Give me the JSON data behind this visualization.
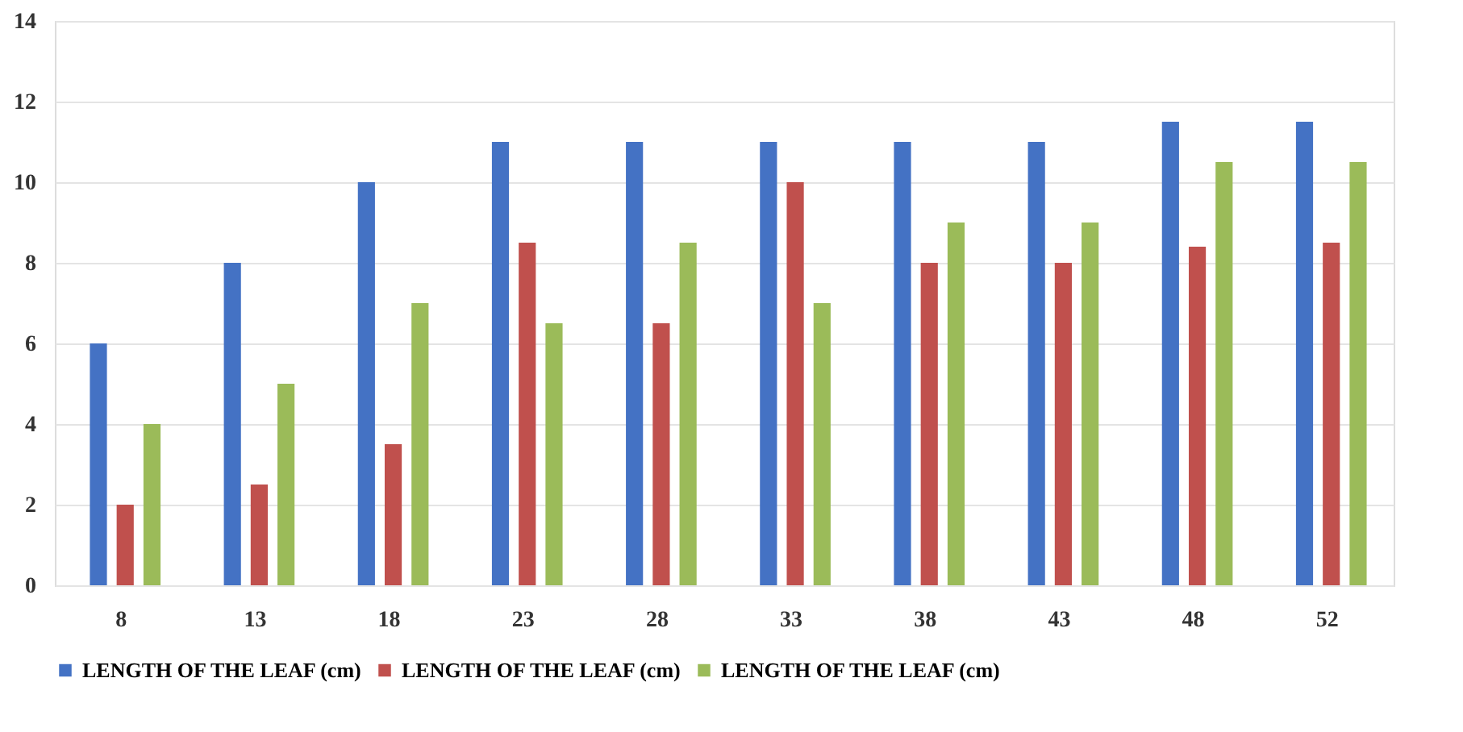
{
  "chart_data": {
    "type": "bar",
    "categories": [
      "8",
      "13",
      "18",
      "23",
      "28",
      "33",
      "38",
      "43",
      "48",
      "52"
    ],
    "series": [
      {
        "name": "LENGTH OF THE LEAF (cm)",
        "color": "#4472c4",
        "values": [
          6,
          8,
          10,
          11,
          11,
          11,
          11,
          11,
          11.5,
          11.5
        ]
      },
      {
        "name": "LENGTH OF THE LEAF (cm)",
        "color": "#c0504d",
        "values": [
          2,
          2.5,
          3.5,
          8.5,
          6.5,
          10,
          8,
          8,
          8.4,
          8.5
        ]
      },
      {
        "name": "LENGTH OF THE LEAF (cm)",
        "color": "#9bbb59",
        "values": [
          4,
          5,
          7,
          6.5,
          8.5,
          7,
          9,
          9,
          10.5,
          10.5
        ]
      }
    ],
    "ylim": [
      0,
      14
    ],
    "yticks": [
      0,
      2,
      4,
      6,
      8,
      10,
      12,
      14
    ],
    "grid": "y",
    "legend": "bottom"
  }
}
